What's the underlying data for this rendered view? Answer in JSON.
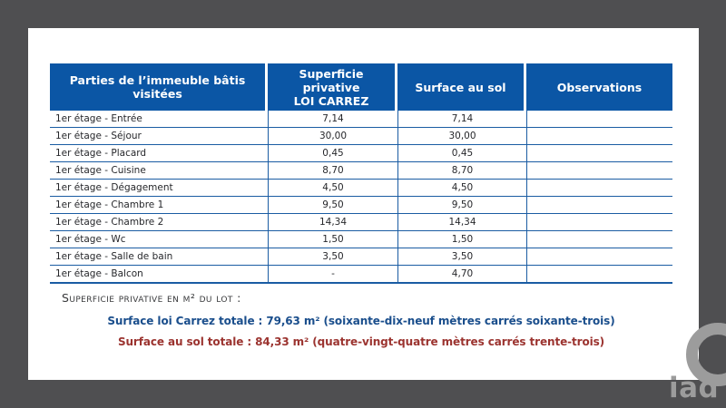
{
  "page": {
    "table": {
      "header": {
        "col1_lines": [
          "Parties de l’immeuble bâtis",
          "visitées"
        ],
        "col2_lines": [
          "Superficie",
          "privative",
          "LOI CARREZ"
        ],
        "col3": "Surface au sol",
        "col4": "Observations"
      },
      "rows": [
        {
          "label": "1er étage - Entrée",
          "carrez": "7,14",
          "sol": "7,14",
          "obs": ""
        },
        {
          "label": "1er étage - Séjour",
          "carrez": "30,00",
          "sol": "30,00",
          "obs": ""
        },
        {
          "label": "1er étage - Placard",
          "carrez": "0,45",
          "sol": "0,45",
          "obs": ""
        },
        {
          "label": "1er étage - Cuisine",
          "carrez": "8,70",
          "sol": "8,70",
          "obs": ""
        },
        {
          "label": "1er étage - Dégagement",
          "carrez": "4,50",
          "sol": "4,50",
          "obs": ""
        },
        {
          "label": "1er étage - Chambre 1",
          "carrez": "9,50",
          "sol": "9,50",
          "obs": ""
        },
        {
          "label": "1er étage - Chambre 2",
          "carrez": "14,34",
          "sol": "14,34",
          "obs": ""
        },
        {
          "label": "1er étage - Wc",
          "carrez": "1,50",
          "sol": "1,50",
          "obs": ""
        },
        {
          "label": "1er étage - Salle de bain",
          "carrez": "3,50",
          "sol": "3,50",
          "obs": ""
        },
        {
          "label": "1er étage - Balcon",
          "carrez": "-",
          "sol": "4,70",
          "obs": ""
        }
      ]
    },
    "summary": {
      "heading": "Superficie privative en m² du lot :",
      "carrez_total": "Surface loi Carrez totale : 79,63 m² (soixante-dix-neuf mètres carrés soixante-trois)",
      "sol_total": "Surface au sol totale : 84,33 m² (quatre-vingt-quatre mètres carrés trente-trois)"
    }
  },
  "logo": {
    "text": "iad"
  },
  "colors": {
    "frame_gray": "#4f4f51",
    "header_blue": "#0b56a5",
    "grid_blue": "#1a5ca3",
    "total_blue": "#1a4e8c",
    "total_red": "#9b332f",
    "logo_gray": "#9c9c9c"
  }
}
